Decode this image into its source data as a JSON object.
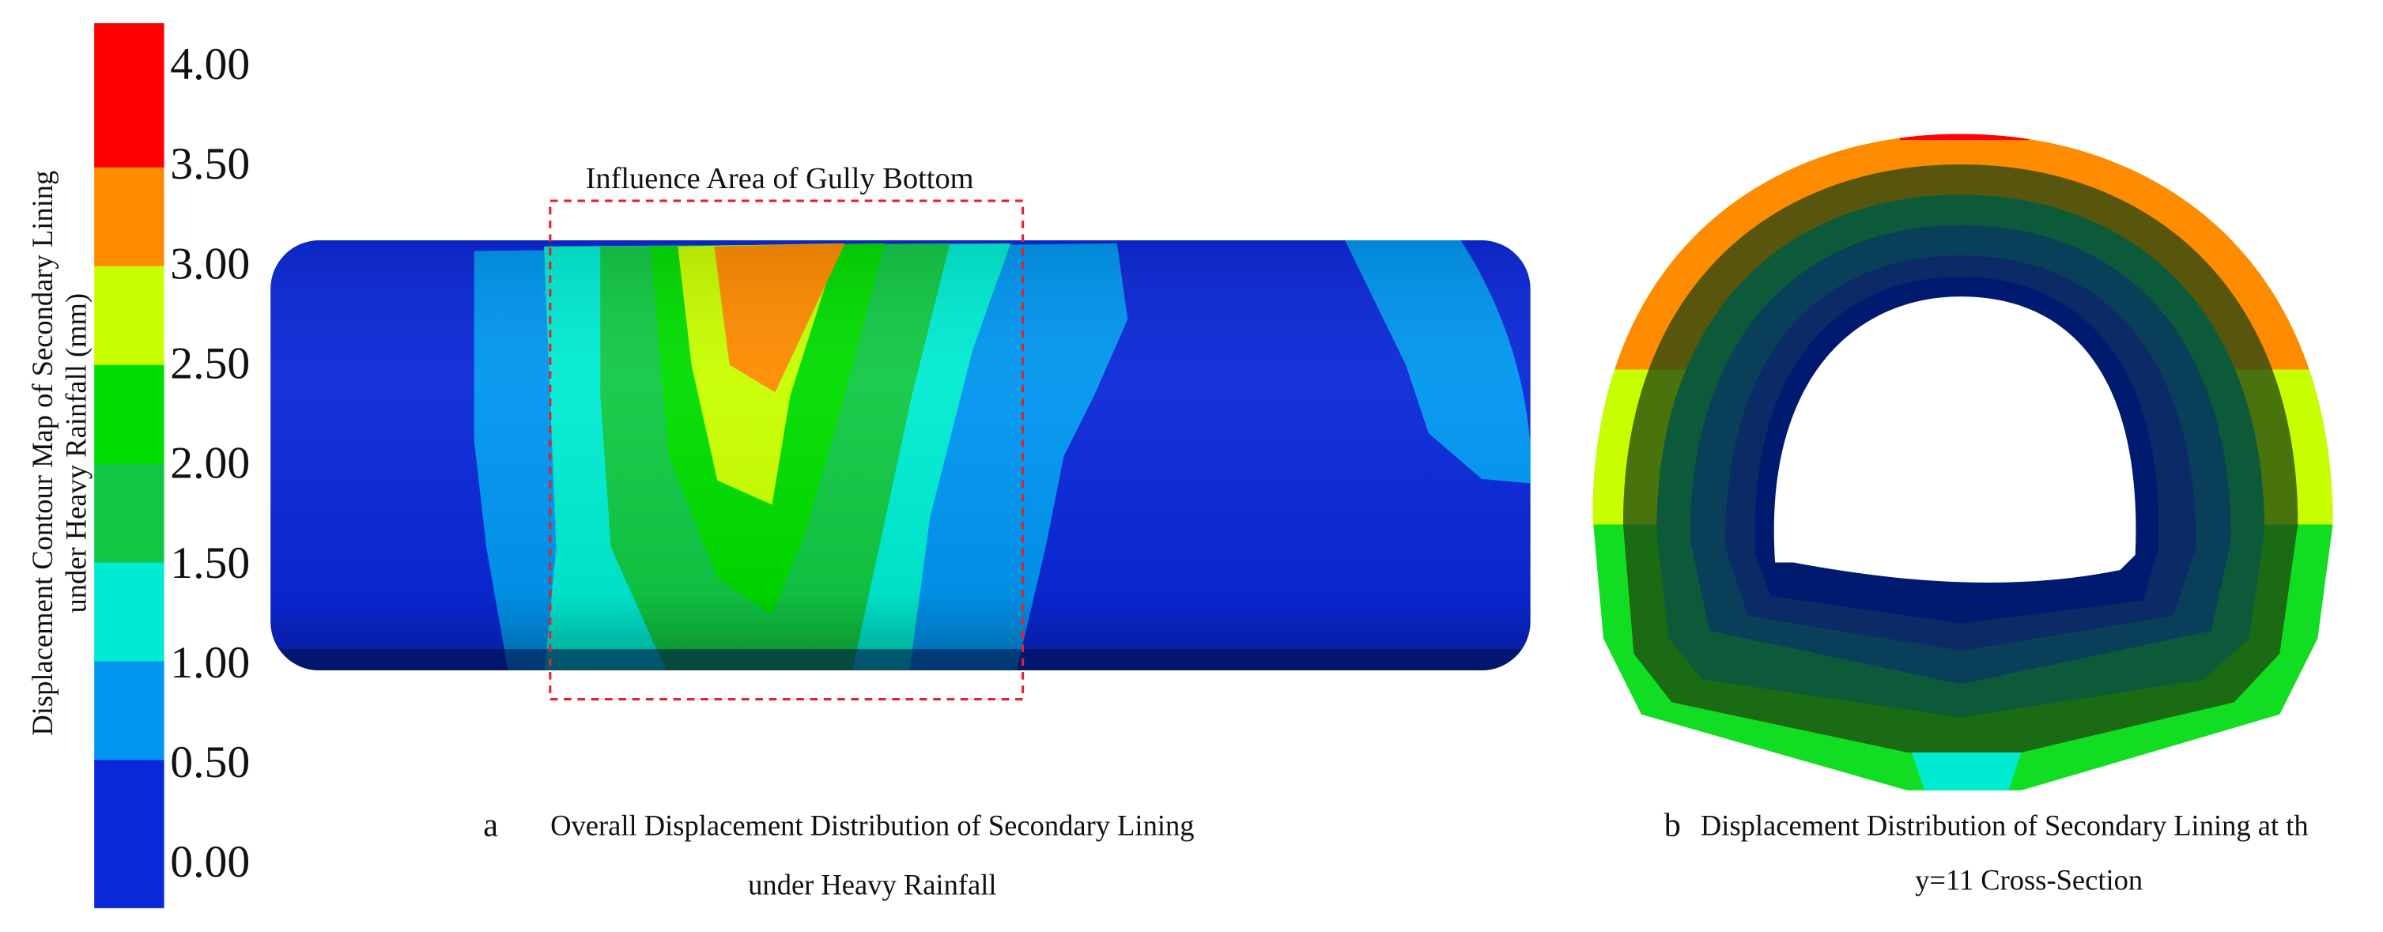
{
  "colorbar": {
    "title_lines": [
      "Displacement Contour Map of Secondary Lining",
      "under Heavy Rainfall (mm)"
    ],
    "labels": [
      "4.00",
      "3.50",
      "3.00",
      "2.50",
      "2.00",
      "1.50",
      "1.00",
      "0.50",
      "0.00"
    ],
    "colors": [
      "#ff0000",
      "#ff8c00",
      "#c8ff00",
      "#00dd00",
      "#11c944",
      "#00ecd2",
      "#0096f0",
      "#0a28d8"
    ]
  },
  "panel_a": {
    "annotation": "Influence Area of Gully Bottom",
    "letter": "a",
    "caption_lines": [
      "Overall Displacement Distribution of Secondary Lining",
      "under Heavy Rainfall"
    ]
  },
  "panel_b": {
    "letter": "b",
    "caption_lines": [
      "Displacement Distribution of Secondary Lining at th",
      "y=11 Cross-Section"
    ]
  }
}
